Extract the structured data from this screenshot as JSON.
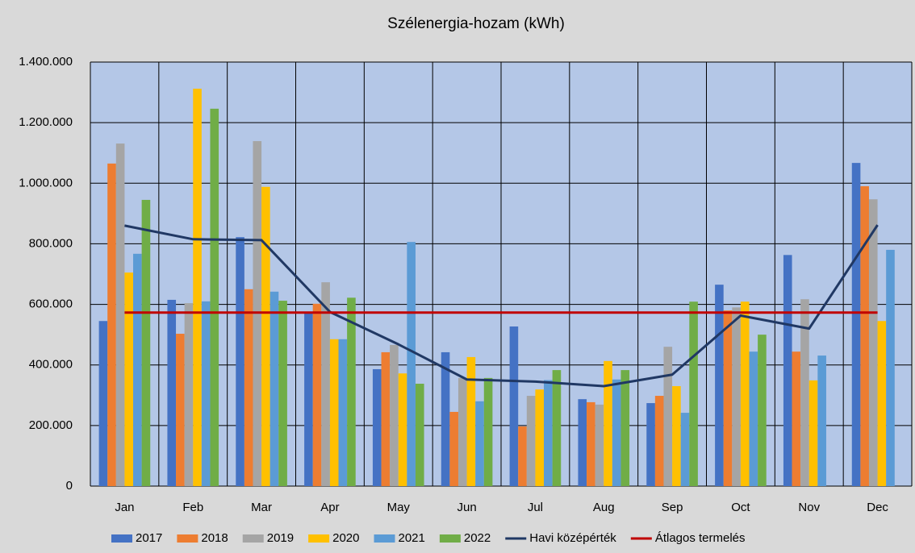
{
  "chart_data": {
    "type": "bar",
    "title": "Szélenergia-hozam (kWh)",
    "categories": [
      "Jan",
      "Feb",
      "Mar",
      "Apr",
      "May",
      "Jun",
      "Jul",
      "Aug",
      "Sep",
      "Oct",
      "Nov",
      "Dec"
    ],
    "series": [
      {
        "name": "2017",
        "color": "#4472c4",
        "values": [
          545000,
          615000,
          822000,
          572000,
          386000,
          442000,
          527000,
          287000,
          274000,
          665000,
          763000,
          1067000
        ]
      },
      {
        "name": "2018",
        "color": "#ed7d31",
        "values": [
          1065000,
          503000,
          650000,
          602000,
          442000,
          245000,
          197000,
          277000,
          298000,
          580000,
          444000,
          990000
        ]
      },
      {
        "name": "2019",
        "color": "#a5a5a5",
        "values": [
          1131000,
          604000,
          1139000,
          673000,
          466000,
          357000,
          298000,
          269000,
          460000,
          590000,
          617000,
          947000
        ]
      },
      {
        "name": "2020",
        "color": "#ffc000",
        "values": [
          705000,
          1312000,
          988000,
          485000,
          372000,
          426000,
          319000,
          413000,
          330000,
          609000,
          349000,
          545000
        ]
      },
      {
        "name": "2021",
        "color": "#5b9bd5",
        "values": [
          767000,
          610000,
          642000,
          485000,
          806000,
          280000,
          350000,
          352000,
          242000,
          444000,
          431000,
          780000
        ]
      },
      {
        "name": "2022",
        "color": "#70ad47",
        "values": [
          945000,
          1246000,
          612000,
          622000,
          338000,
          357000,
          383000,
          383000,
          609000,
          500000,
          null,
          null
        ]
      },
      {
        "name": "Havi középérték",
        "color": "#203864",
        "type": "line",
        "values": [
          860000,
          815000,
          812000,
          575000,
          468000,
          352000,
          345000,
          330000,
          368000,
          563000,
          520000,
          862000
        ]
      },
      {
        "name": "Átlagos termelés",
        "color": "#c00000",
        "type": "line",
        "values": [
          573000,
          573000,
          573000,
          573000,
          573000,
          573000,
          573000,
          573000,
          573000,
          573000,
          573000,
          573000
        ]
      }
    ],
    "ylim": [
      0,
      1400000
    ],
    "yticks": [
      0,
      {
        "value": 200000,
        "label": "200.000"
      },
      {
        "value": 400000,
        "label": "400.000"
      },
      {
        "value": 600000,
        "label": "600.000"
      },
      {
        "value": 800000,
        "label": "800.000"
      },
      {
        "value": 1000000,
        "label": "1.000.000"
      },
      {
        "value": 1200000,
        "label": "1.200.000"
      },
      {
        "value": 1400000,
        "label": "1.400.000"
      }
    ],
    "grid": true,
    "legend": "bottom"
  }
}
